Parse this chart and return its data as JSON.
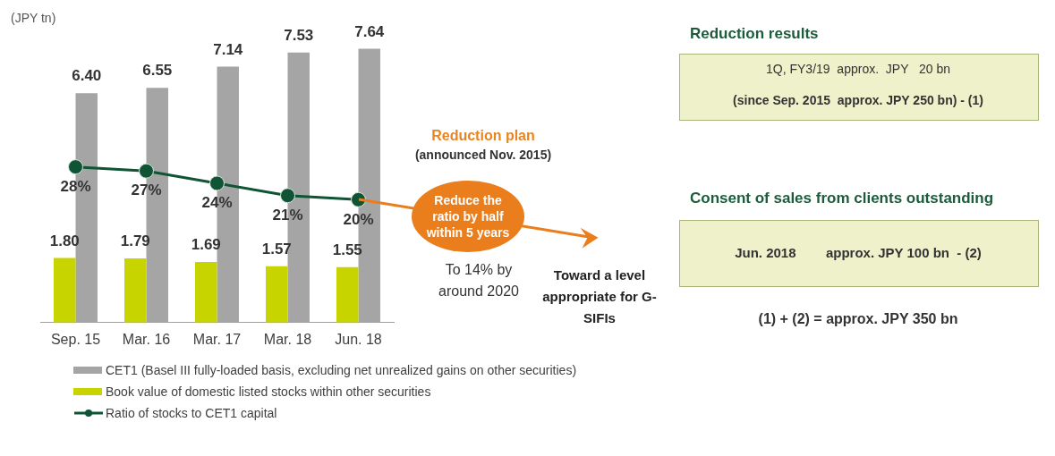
{
  "chart_data": {
    "type": "bar",
    "categories": [
      "Sep. 15",
      "Mar. 16",
      "Mar. 17",
      "Mar. 18",
      "Jun. 18"
    ],
    "series": [
      {
        "name": "CET1 (Basel III fully-loaded basis, excluding net unrealized gains on other securities)",
        "color": "#a5a5a5",
        "values": [
          6.4,
          6.55,
          7.14,
          7.53,
          7.64
        ],
        "value_labels": [
          "6.40",
          "6.55",
          "7.14",
          "7.53",
          "7.64"
        ]
      },
      {
        "name": "Book value of domestic listed stocks within other securities",
        "color": "#c8d400",
        "values": [
          1.8,
          1.79,
          1.69,
          1.57,
          1.55
        ],
        "value_labels": [
          "1.80",
          "1.79",
          "1.69",
          "1.57",
          "1.55"
        ]
      },
      {
        "name": "Ratio of stocks to CET1 capital",
        "type": "line",
        "axis": "y2",
        "color": "#0f5434",
        "values": [
          28,
          27,
          24,
          21,
          20
        ],
        "value_labels": [
          "28%",
          "27%",
          "24%",
          "21%",
          "20%"
        ]
      }
    ],
    "marker": "circle",
    "grid": false,
    "legend": "bottom",
    "annotations": [
      "(JPY tn)",
      "Reduction plan",
      "(announced Nov. 2015)",
      "Reduce the ratio by half within 5 years",
      "To 14% by around 2020",
      "Toward a level appropriate for G-SIFIs",
      "Reduction results",
      "1Q, FY3/19  approx.  JPY   20 bn",
      "(since Sep. 2015  approx. JPY 250 bn) - (1)",
      "Consent of sales from clients outstanding",
      "Jun. 2018        approx. JPY 100 bn  - (2)",
      "(1) + (2) = approx. JPY 350 bn"
    ]
  }
}
